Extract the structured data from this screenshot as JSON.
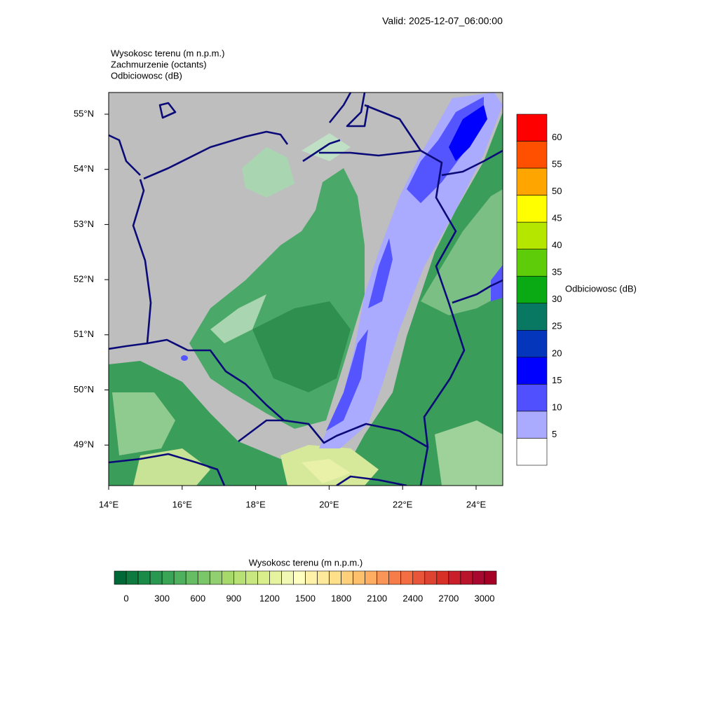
{
  "valid": "Valid: 2025-12-07_06:00:00",
  "titles": [
    "Wysokosc terenu   (m n.p.m.)",
    "Zachmurzenie   (octants)",
    "Odbiciowosc   (dB)"
  ],
  "map": {
    "lat_labels": [
      "55°N",
      "54°N",
      "53°N",
      "52°N",
      "51°N",
      "50°N",
      "49°N"
    ],
    "lon_labels": [
      "14°E",
      "16°E",
      "18°E",
      "20°E",
      "22°E",
      "24°E"
    ]
  },
  "reflectivity_legend": {
    "title": "Odbiciowosc  (dB)",
    "labels": [
      "60",
      "55",
      "50",
      "45",
      "40",
      "35",
      "30",
      "25",
      "20",
      "15",
      "10",
      "5"
    ],
    "colors": [
      "#ff0000",
      "#ff5000",
      "#ffa500",
      "#ffff00",
      "#b4e600",
      "#5fcc0a",
      "#0aaa14",
      "#087862",
      "#0336bb",
      "#0000ff",
      "#5050ff",
      "#aaaaff",
      "#ffffff"
    ]
  },
  "terrain_legend": {
    "title": "Wysokosc terenu  (m n.p.m.)",
    "labels": [
      "0",
      "300",
      "600",
      "900",
      "1200",
      "1500",
      "1800",
      "2100",
      "2400",
      "2700",
      "3000"
    ],
    "colors": [
      "#006837",
      "#0f7a40",
      "#1a8a48",
      "#2a9850",
      "#3aa457",
      "#4fb05e",
      "#66bd63",
      "#7cc66a",
      "#91cf70",
      "#a6d96a",
      "#b7e075",
      "#c8e780",
      "#d9ef8b",
      "#e6f4a0",
      "#f0f8b4",
      "#ffffbf",
      "#fff2a8",
      "#fee99a",
      "#fee08b",
      "#fed07a",
      "#fdc06c",
      "#fdae61",
      "#f99556",
      "#f67c4a",
      "#f46d43",
      "#e8553a",
      "#de4331",
      "#d73027",
      "#c81f2a",
      "#b8152c",
      "#a8082f",
      "#a50026"
    ]
  }
}
